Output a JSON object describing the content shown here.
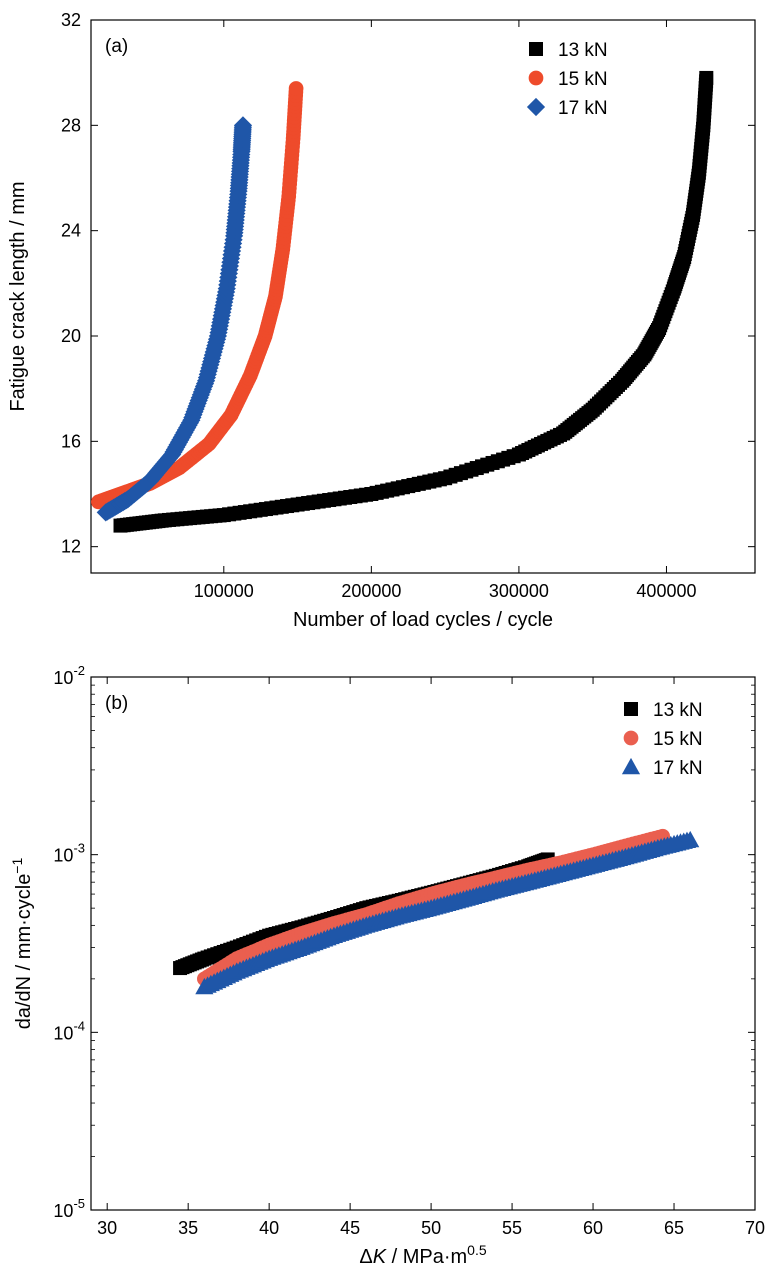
{
  "colors": {
    "series_13": "#000000",
    "series_15": "#ee4b2b",
    "series_17": "#1f56a8",
    "series_15b": "#ea5f4f"
  },
  "chart_data": [
    {
      "type": "scatter",
      "panel_label": "(a)",
      "xlabel": "Number of load cycles / cycle",
      "ylabel": "Fatigue crack length / mm",
      "xlim": [
        10000,
        460000
      ],
      "ylim": [
        11,
        32
      ],
      "xticks": [
        100000,
        200000,
        300000,
        400000
      ],
      "xtick_labels": [
        "100000",
        "200000",
        "300000",
        "400000"
      ],
      "yticks": [
        12,
        16,
        20,
        24,
        28,
        32
      ],
      "ytick_labels": [
        "12",
        "16",
        "20",
        "24",
        "28",
        "32"
      ],
      "legend_position": "top-right",
      "series": [
        {
          "name": "13 kN",
          "marker": "square",
          "color": "#000000",
          "x": [
            30000,
            60000,
            100000,
            150000,
            200000,
            250000,
            300000,
            330000,
            350000,
            370000,
            385000,
            395000,
            405000,
            412000,
            418000,
            422000,
            425000,
            427000
          ],
          "y": [
            12.8,
            13.0,
            13.2,
            13.6,
            14.0,
            14.6,
            15.5,
            16.3,
            17.2,
            18.3,
            19.3,
            20.3,
            21.8,
            23.0,
            24.6,
            26.2,
            28.0,
            29.8
          ]
        },
        {
          "name": "15 kN",
          "marker": "circle",
          "color": "#ee4b2b",
          "x": [
            15000,
            30000,
            50000,
            70000,
            90000,
            105000,
            118000,
            128000,
            135000,
            140000,
            144000,
            147000,
            149000
          ],
          "y": [
            13.7,
            14.0,
            14.4,
            15.0,
            15.9,
            17.0,
            18.5,
            20.0,
            21.5,
            23.3,
            25.3,
            27.5,
            29.4
          ]
        },
        {
          "name": "17 kN",
          "marker": "diamond",
          "color": "#1f56a8",
          "x": [
            20000,
            35000,
            50000,
            65000,
            78000,
            88000,
            96000,
            102000,
            107000,
            110000,
            112000,
            113000
          ],
          "y": [
            13.3,
            13.8,
            14.5,
            15.5,
            16.8,
            18.3,
            20.0,
            21.8,
            23.8,
            25.5,
            27.0,
            28.0
          ]
        }
      ]
    },
    {
      "type": "scatter",
      "panel_label": "(b)",
      "xlabel": "ΔK / MPa·m0.5",
      "ylabel": "da/dN / mm·cycle−1",
      "xlim": [
        29,
        70
      ],
      "ylim": [
        1e-05,
        0.01
      ],
      "yscale": "log",
      "xticks": [
        30,
        35,
        40,
        45,
        50,
        55,
        60,
        65,
        70
      ],
      "xtick_labels": [
        "30",
        "35",
        "40",
        "45",
        "50",
        "55",
        "60",
        "65",
        "70"
      ],
      "yticks": [
        1e-05,
        0.0001,
        0.001,
        0.01
      ],
      "ytick_labels": [
        {
          "base": "10",
          "exp": "-5"
        },
        {
          "base": "10",
          "exp": "-4"
        },
        {
          "base": "10",
          "exp": "-3"
        },
        {
          "base": "10",
          "exp": "-2"
        }
      ],
      "legend_position": "top-right",
      "series": [
        {
          "name": "13 kN",
          "marker": "square",
          "color": "#000000",
          "x": [
            34.5,
            36,
            38,
            40,
            42,
            44,
            46,
            48,
            50,
            52,
            54,
            56,
            57.2
          ],
          "y": [
            0.00023,
            0.00026,
            0.0003,
            0.00035,
            0.00039,
            0.00044,
            0.0005,
            0.00055,
            0.00061,
            0.00068,
            0.00076,
            0.00086,
            0.00094
          ]
        },
        {
          "name": "15 kN",
          "marker": "circle",
          "color": "#ea5f4f",
          "x": [
            36,
            38,
            40,
            42,
            44,
            46,
            48,
            50,
            52,
            54,
            56,
            58,
            60,
            62,
            64.3
          ],
          "y": [
            0.0002,
            0.00026,
            0.00031,
            0.00036,
            0.00041,
            0.00046,
            0.00053,
            0.0006,
            0.00067,
            0.00074,
            0.00082,
            0.0009,
            0.001,
            0.00112,
            0.00127
          ]
        },
        {
          "name": "17 kN",
          "marker": "triangle",
          "color": "#1f56a8",
          "x": [
            36,
            38,
            40,
            42,
            44,
            46,
            48,
            50,
            52,
            54,
            56,
            58,
            60,
            62,
            64,
            66
          ],
          "y": [
            0.00018,
            0.00022,
            0.00026,
            0.0003,
            0.00035,
            0.0004,
            0.00045,
            0.0005,
            0.00056,
            0.00063,
            0.0007,
            0.00078,
            0.00087,
            0.00097,
            0.00109,
            0.00121
          ]
        }
      ]
    }
  ]
}
